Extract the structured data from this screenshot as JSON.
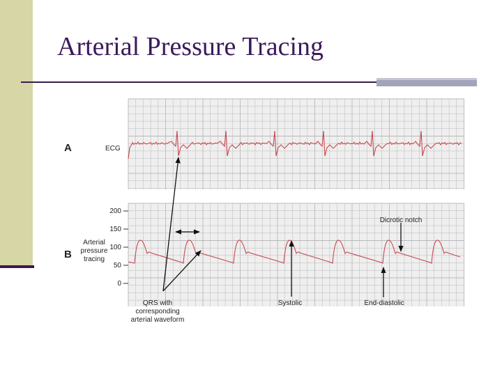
{
  "slide": {
    "title": "Arterial Pressure Tracing"
  },
  "figure": {
    "panel_a": {
      "letter": "A",
      "label": "ECG"
    },
    "panel_b": {
      "letter": "B",
      "label_lines": [
        "Arterial",
        "pressure",
        "tracing"
      ],
      "y_ticks": [
        "200",
        "150",
        "100",
        "50",
        "0"
      ]
    },
    "annotations": {
      "dicrotic_notch": "Dicrotic notch",
      "qrs_lines": [
        "QRS with",
        "corresponding",
        "arterial waveform"
      ],
      "systolic": "Systolic",
      "end_diastolic": "End-diastolic"
    },
    "colors": {
      "trace": "#c8474e",
      "grid": "#b8b8b8",
      "panel_bg": "#efefef"
    }
  }
}
